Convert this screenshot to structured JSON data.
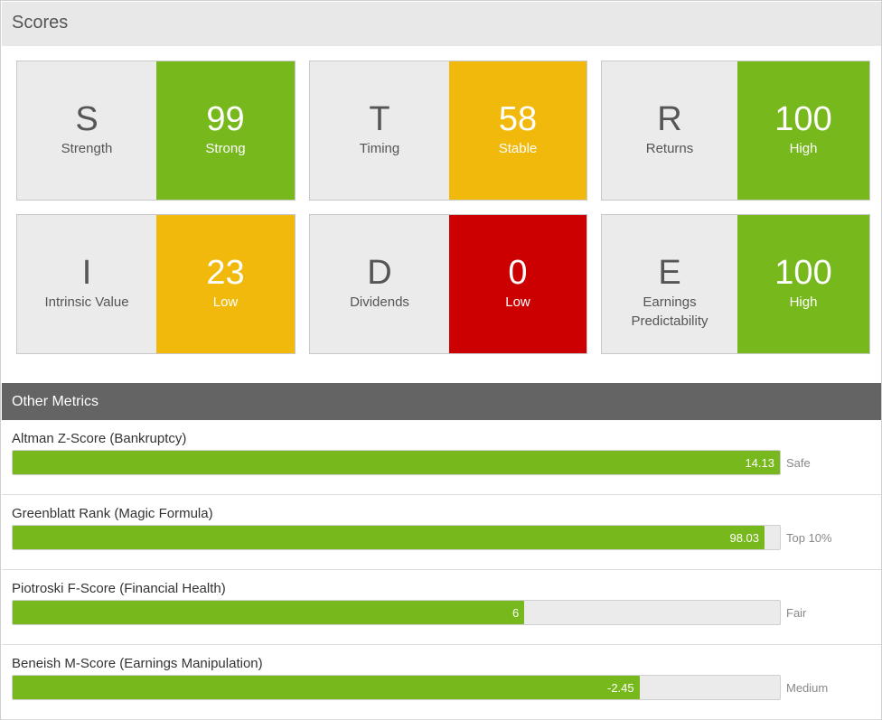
{
  "scores": {
    "title": "Scores",
    "cards": [
      {
        "letter": "S",
        "label": "Strength",
        "score": "99",
        "rating": "Strong",
        "color": "#77b81c"
      },
      {
        "letter": "T",
        "label": "Timing",
        "score": "58",
        "rating": "Stable",
        "color": "#f0b90c"
      },
      {
        "letter": "R",
        "label": "Returns",
        "score": "100",
        "rating": "High",
        "color": "#77b81c"
      },
      {
        "letter": "I",
        "label": "Intrinsic Value",
        "score": "23",
        "rating": "Low",
        "color": "#f0b90c"
      },
      {
        "letter": "D",
        "label": "Dividends",
        "score": "0",
        "rating": "Low",
        "color": "#cc0000"
      },
      {
        "letter": "E",
        "label": "Earnings Predictability",
        "score": "100",
        "rating": "High",
        "color": "#77b81c"
      }
    ]
  },
  "other_metrics": {
    "title": "Other Metrics",
    "items": [
      {
        "label": "Altman Z-Score (Bankruptcy)",
        "value": "14.13",
        "status": "Safe",
        "fill_fraction": 1.0
      },
      {
        "label": "Greenblatt Rank (Magic Formula)",
        "value": "98.03",
        "status": "Top 10%",
        "fill_fraction": 0.98
      },
      {
        "label": "Piotroski F-Score (Financial Health)",
        "value": "6",
        "status": "Fair",
        "fill_fraction": 0.667
      },
      {
        "label": "Beneish M-Score (Earnings Manipulation)",
        "value": "-2.45",
        "status": "Medium",
        "fill_fraction": 0.817
      }
    ]
  },
  "colors": {
    "green": "#77b81c",
    "yellow": "#f0b90c",
    "red": "#cc0000",
    "header_dark": "#646464",
    "header_light": "#e8e8e8"
  }
}
